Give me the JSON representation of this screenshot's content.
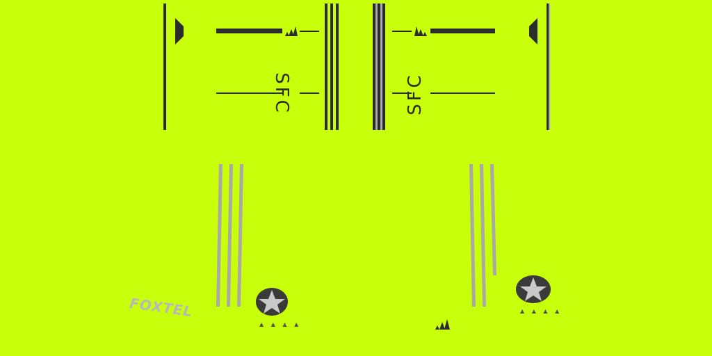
{
  "shirt": {
    "club_initials_left": "SFC",
    "club_initials_right": "SFC"
  },
  "shorts": {
    "sponsor_left": "FOXTEL"
  },
  "colors": {
    "base": "#c8ff0a",
    "trim_dark": "#2c2c2c",
    "trim_grey": "#a9a9a9"
  },
  "icons": [
    "adidas-logo-icon",
    "star-badge-icon"
  ]
}
